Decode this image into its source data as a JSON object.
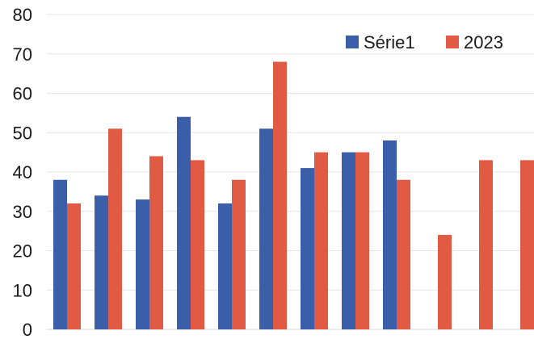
{
  "chart_data": {
    "type": "bar",
    "categories": [
      "",
      "",
      "",
      "",
      "",
      "",
      "",
      "",
      "",
      "",
      "",
      ""
    ],
    "series": [
      {
        "name": "Série1",
        "color": "#3b5ea8",
        "values": [
          38,
          34,
          33,
          54,
          32,
          51,
          41,
          45,
          48,
          null,
          null,
          null
        ]
      },
      {
        "name": "2023",
        "color": "#e05a44",
        "values": [
          32,
          51,
          44,
          43,
          38,
          68,
          45,
          45,
          38,
          24,
          43,
          43
        ]
      }
    ],
    "title": "",
    "xlabel": "",
    "ylabel": "",
    "ylim": [
      0,
      80
    ],
    "yticks": [
      "0",
      "10",
      "20",
      "30",
      "40",
      "50",
      "60",
      "70",
      "80"
    ],
    "grid": true,
    "legend": "top-right"
  }
}
